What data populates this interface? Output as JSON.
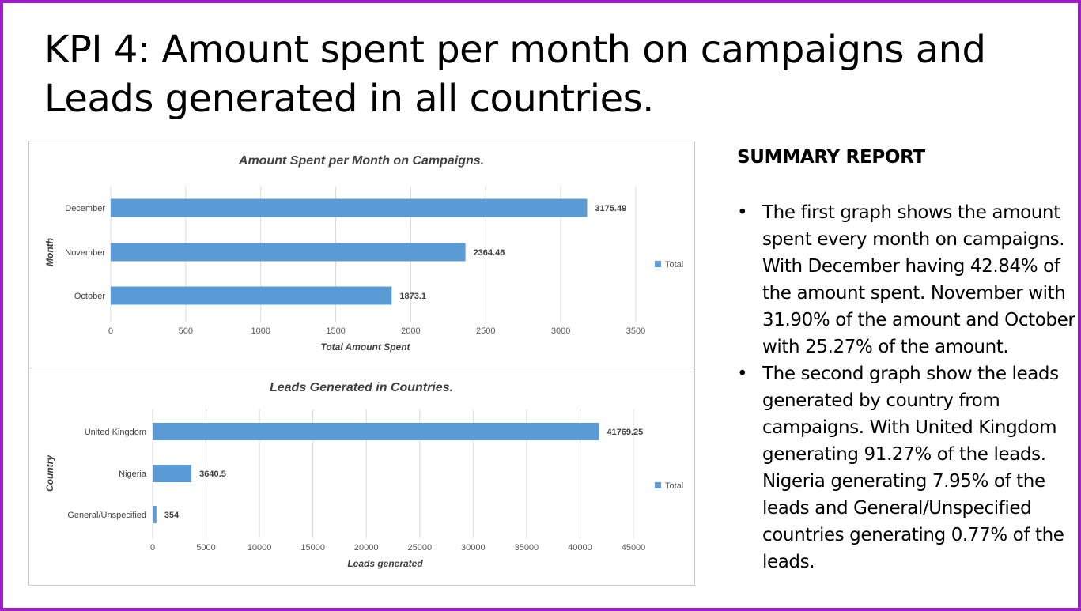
{
  "slide": {
    "title_line1": "KPI 4: Amount spent per month on campaigns and",
    "title_line2": "Leads generated in all countries.",
    "border_color": "#9b1fc4"
  },
  "summary": {
    "heading": "SUMMARY REPORT",
    "bullet_glyph": "•",
    "points": [
      "The first graph shows the amount spent every month on campaigns. With December having 42.84% of the amount spent. November with 31.90% of the amount and October with 25.27% of the amount.",
      "The second graph show the leads generated by country from campaigns. With United Kingdom generating 91.27% of the leads. Nigeria generating 7.95% of the leads and General/Unspecified countries generating 0.77% of the leads."
    ]
  },
  "chart_data": [
    {
      "type": "bar",
      "orientation": "horizontal",
      "title": "Amount Spent per Month on Campaigns.",
      "xlabel": "Total Amount Spent",
      "ylabel": "Month",
      "categories": [
        "December",
        "November",
        "October"
      ],
      "series": [
        {
          "name": "Total",
          "values": [
            3175.49,
            2364.46,
            1873.1
          ],
          "color": "#5b9bd5"
        }
      ],
      "data_labels": [
        "3175.49",
        "2364.46",
        "1873.1"
      ],
      "xlim": [
        0,
        3500
      ],
      "xticks": [
        "0",
        "500",
        "1000",
        "1500",
        "2000",
        "2500",
        "3000",
        "3500"
      ],
      "grid": true,
      "legend": "right"
    },
    {
      "type": "bar",
      "orientation": "horizontal",
      "title": "Leads Generated in Countries.",
      "xlabel": "Leads generated",
      "ylabel": "Country",
      "categories": [
        "United Kingdom",
        "Nigeria",
        "General/Unspecified"
      ],
      "series": [
        {
          "name": "Total",
          "values": [
            41769.25,
            3640.5,
            354
          ],
          "color": "#5b9bd5"
        }
      ],
      "data_labels": [
        "41769.25",
        "3640.5",
        "354"
      ],
      "xlim": [
        0,
        45000
      ],
      "xticks": [
        "0",
        "5000",
        "10000",
        "15000",
        "20000",
        "25000",
        "30000",
        "35000",
        "40000",
        "45000"
      ],
      "grid": true,
      "legend": "right"
    }
  ]
}
